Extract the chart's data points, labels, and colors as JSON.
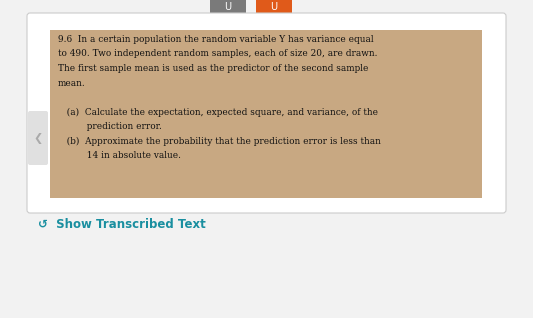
{
  "bg_color": "#f2f2f2",
  "outer_box_facecolor": "#ffffff",
  "outer_box_edgecolor": "#cccccc",
  "inner_box_color": "#c8a882",
  "top_bar_gray": "#7a7a7a",
  "top_bar_orange": "#e05a1a",
  "show_transcribed_color": "#1a8fa0",
  "show_transcribed_text": "↺  Show Transcribed Text",
  "left_tab_color": "#e0e0e0",
  "text_color": "#111111",
  "line1": "9.6  In a certain population the random variable Y has variance equal",
  "line2": "to 490. Two independent random samples, each of size 20, are drawn.",
  "line3": "The first sample mean is used as the predictor of the second sample",
  "line4": "mean.",
  "line5": "   (a)  Calculate the expectation, expected square, and variance, of the",
  "line6": "          prediction error.",
  "line7": "   (b)  Approximate the probability that the prediction error is less than",
  "line8": "          14 in absolute value.",
  "main_fontsize": 6.4,
  "transcribed_fontsize": 8.5,
  "fig_width": 5.33,
  "fig_height": 3.18,
  "dpi": 100
}
